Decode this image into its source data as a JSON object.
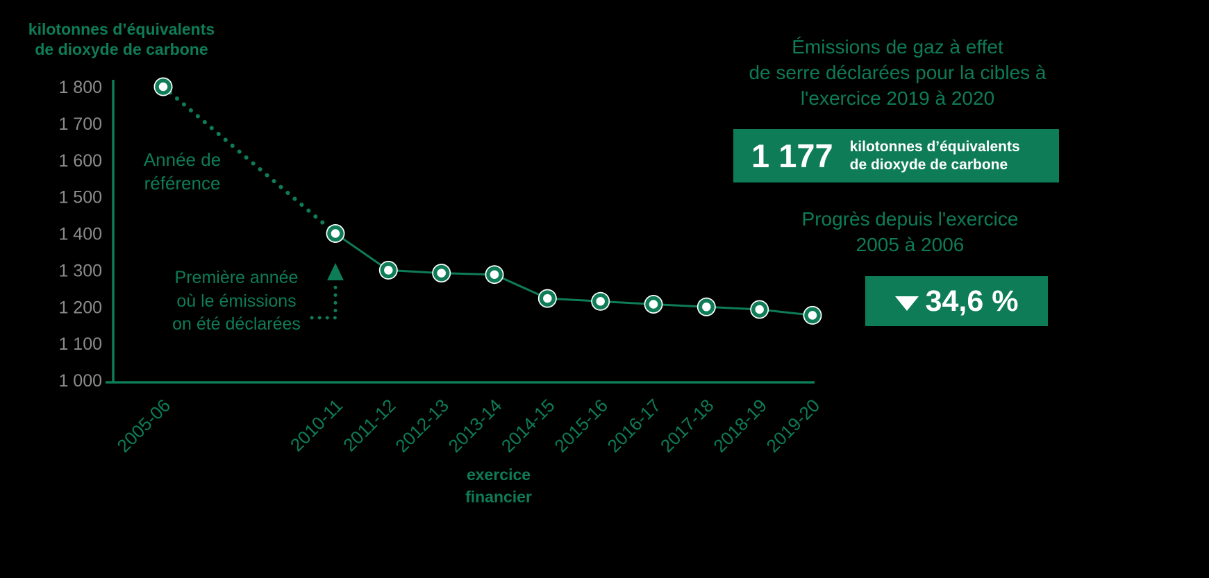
{
  "colors": {
    "green": "#0E7C56",
    "tick_gray": "#8C8C8C",
    "box_text": "#FFFFFF",
    "background": "#000000"
  },
  "chart_data": {
    "type": "line",
    "title": "",
    "x": [
      "2005-06",
      "2010-11",
      "2011-12",
      "2012-13",
      "2013-14",
      "2014-15",
      "2015-16",
      "2016-17",
      "2017-18",
      "2018-19",
      "2019-20"
    ],
    "series": [
      {
        "name": "Émissions de gaz à effet de serre déclarées",
        "values": [
          1800,
          1400,
          1300,
          1292,
          1288,
          1223,
          1215,
          1207,
          1200,
          1193,
          1177
        ]
      }
    ],
    "ylim": [
      1000,
      1800
    ],
    "ytick_step": 100,
    "ytick_labels": [
      "1 000",
      "1 100",
      "1 200",
      "1 300",
      "1 400",
      "1 500",
      "1 600",
      "1 700",
      "1 800"
    ],
    "xlabel_lines": [
      "exercice",
      "financier"
    ],
    "ylabel_lines": [
      "kilotonnes d’équivalents",
      "de dioxyde de carbone"
    ],
    "grid": false,
    "legend": "none",
    "line_style": {
      "first_segment": "dotted",
      "remaining_segments": "solid"
    },
    "marker": "white-filled circle with green ring",
    "annotations": [
      {
        "id": "reference-year",
        "target_x": "2005-06",
        "lines": [
          "Année de",
          "référence"
        ]
      },
      {
        "id": "first-declared-year",
        "target_x": "2010-11",
        "lines": [
          "Première année",
          "où le émissions",
          "on été déclarées"
        ]
      }
    ]
  },
  "right_panel": {
    "title_lines": [
      "Émissions de gaz à effet",
      "de serre déclarées pour la cibles à",
      "l'exercice 2019 à 2020"
    ],
    "emissions_box": {
      "value": "1 177",
      "unit_lines": [
        "kilotonnes d’équivalents",
        "de dioxyde de carbone"
      ]
    },
    "progress_label_lines": [
      "Progrès depuis l'exercice",
      "2005 à 2006"
    ],
    "progress_box": {
      "icon": "down-triangle",
      "value": "34,6 %"
    }
  }
}
